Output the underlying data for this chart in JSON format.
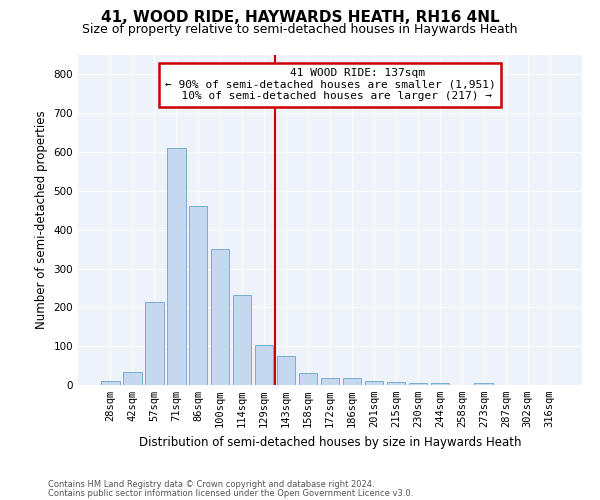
{
  "title": "41, WOOD RIDE, HAYWARDS HEATH, RH16 4NL",
  "subtitle": "Size of property relative to semi-detached houses in Haywards Heath",
  "xlabel": "Distribution of semi-detached houses by size in Haywards Heath",
  "ylabel": "Number of semi-detached properties",
  "footnote1": "Contains HM Land Registry data © Crown copyright and database right 2024.",
  "footnote2": "Contains public sector information licensed under the Open Government Licence v3.0.",
  "categories": [
    "28sqm",
    "42sqm",
    "57sqm",
    "71sqm",
    "86sqm",
    "100sqm",
    "114sqm",
    "129sqm",
    "143sqm",
    "158sqm",
    "172sqm",
    "186sqm",
    "201sqm",
    "215sqm",
    "230sqm",
    "244sqm",
    "258sqm",
    "273sqm",
    "287sqm",
    "302sqm",
    "316sqm"
  ],
  "values": [
    10,
    33,
    215,
    610,
    460,
    350,
    233,
    103,
    75,
    30,
    18,
    17,
    10,
    9,
    5,
    4,
    1,
    6,
    1,
    0,
    0
  ],
  "bar_color": "#c5d8f0",
  "bar_edge_color": "#7aadd4",
  "property_line_index": 8,
  "property_label": "41 WOOD RIDE: 137sqm",
  "annotation_line1": "← 90% of semi-detached houses are smaller (1,951)",
  "annotation_line2": "10% of semi-detached houses are larger (217) →",
  "annotation_box_color": "#ffffff",
  "annotation_box_edge": "#cc0000",
  "vline_color": "#cc0000",
  "ylim": [
    0,
    850
  ],
  "yticks": [
    0,
    100,
    200,
    300,
    400,
    500,
    600,
    700,
    800
  ],
  "background_color": "#eef2f9",
  "title_fontsize": 11,
  "subtitle_fontsize": 9,
  "axis_fontsize": 8.5,
  "tick_fontsize": 7.5,
  "annotation_fontsize": 8
}
